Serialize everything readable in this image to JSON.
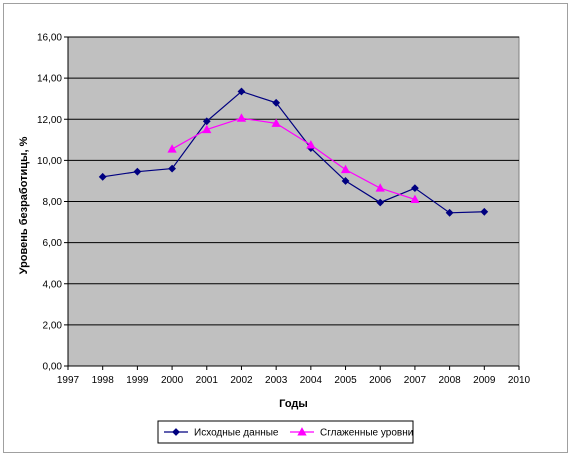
{
  "chart_data": {
    "type": "line",
    "title": "",
    "xlabel": "Годы",
    "ylabel": "Уровень безработицы, %",
    "xlim": [
      1997,
      2010
    ],
    "ylim": [
      0,
      16
    ],
    "x_ticks": [
      "1997",
      "1998",
      "1999",
      "2000",
      "2001",
      "2002",
      "2003",
      "2004",
      "2005",
      "2006",
      "2007",
      "2008",
      "2009",
      "2010"
    ],
    "y_ticks": [
      "0,00",
      "2,00",
      "4,00",
      "6,00",
      "8,00",
      "10,00",
      "12,00",
      "14,00",
      "16,00"
    ],
    "grid": "horizontal",
    "plot_background": "#c0c0c0",
    "legend_position": "bottom",
    "series": [
      {
        "name": "Исходные данные",
        "color": "#000080",
        "marker": "diamond",
        "x": [
          1998,
          1999,
          2000,
          2001,
          2002,
          2003,
          2004,
          2005,
          2006,
          2007,
          2008,
          2009
        ],
        "values": [
          9.2,
          9.45,
          9.6,
          11.9,
          13.35,
          12.8,
          10.6,
          9.0,
          7.95,
          8.65,
          7.45,
          7.5
        ]
      },
      {
        "name": "Сглаженные уровни",
        "color": "#ff00ff",
        "marker": "triangle",
        "x": [
          2000,
          2001,
          2002,
          2003,
          2004,
          2005,
          2006,
          2007
        ],
        "values": [
          10.55,
          11.5,
          12.05,
          11.8,
          10.75,
          9.55,
          8.65,
          8.1
        ]
      }
    ]
  }
}
